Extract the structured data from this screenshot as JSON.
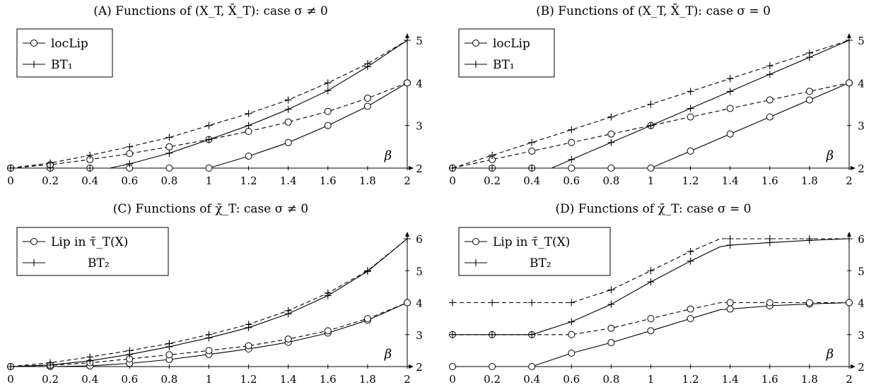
{
  "chart_data": [
    {
      "type": "line",
      "title": "(A) Functions of (X_T, X̄_T): case σ ≠ 0",
      "xlabel": "β",
      "xlim": [
        0,
        2
      ],
      "ylim": [
        2,
        5
      ],
      "x_ticks": [
        "0",
        "0.2",
        "0.4",
        "0.6",
        "0.8",
        "1",
        "1.2",
        "1.4",
        "1.6",
        "1.8",
        "2"
      ],
      "y_ticks": [
        "2",
        "3",
        "4",
        "5"
      ],
      "legend": {
        "position": "top-left",
        "entries": [
          {
            "label": "locLip",
            "marker": "circle"
          },
          {
            "label": "BT₁",
            "marker": "plus"
          }
        ]
      },
      "series": [
        {
          "name": "locLip",
          "style": "solid",
          "marker": "circle",
          "points": [
            [
              0,
              2
            ],
            [
              0.2,
              2
            ],
            [
              0.4,
              2
            ],
            [
              0.6,
              2
            ],
            [
              0.8,
              2
            ],
            [
              1,
              2
            ],
            [
              1.2,
              2.28
            ],
            [
              1.4,
              2.6
            ],
            [
              1.6,
              3.0
            ],
            [
              1.8,
              3.45
            ],
            [
              2,
              4
            ]
          ]
        },
        {
          "name": "locLip",
          "style": "dashed",
          "marker": "circle",
          "points": [
            [
              0,
              2
            ],
            [
              0.2,
              2.08
            ],
            [
              0.4,
              2.2
            ],
            [
              0.6,
              2.34
            ],
            [
              0.8,
              2.5
            ],
            [
              1,
              2.67
            ],
            [
              1.2,
              2.86
            ],
            [
              1.4,
              3.08
            ],
            [
              1.6,
              3.33
            ],
            [
              1.8,
              3.64
            ],
            [
              2,
              4
            ]
          ]
        },
        {
          "name": "BT₁",
          "style": "solid",
          "marker": "plus",
          "points": [
            [
              0,
              2
            ],
            [
              0.2,
              2
            ],
            [
              0.4,
              2
            ],
            [
              0.5,
              2
            ],
            [
              0.6,
              2.1
            ],
            [
              0.8,
              2.35
            ],
            [
              1,
              2.67
            ],
            [
              1.2,
              3.0
            ],
            [
              1.4,
              3.38
            ],
            [
              1.6,
              3.82
            ],
            [
              1.8,
              4.38
            ],
            [
              2,
              5
            ]
          ]
        },
        {
          "name": "BT₁",
          "style": "dashed",
          "marker": "plus",
          "points": [
            [
              0,
              2
            ],
            [
              0.2,
              2.12
            ],
            [
              0.4,
              2.3
            ],
            [
              0.6,
              2.5
            ],
            [
              0.8,
              2.72
            ],
            [
              1,
              3.0
            ],
            [
              1.2,
              3.28
            ],
            [
              1.4,
              3.6
            ],
            [
              1.6,
              4.0
            ],
            [
              1.8,
              4.45
            ],
            [
              2,
              5
            ]
          ]
        }
      ]
    },
    {
      "type": "line",
      "title": "(B) Functions of (X_T, X̄_T): case σ = 0",
      "xlabel": "β",
      "xlim": [
        0,
        2
      ],
      "ylim": [
        2,
        5
      ],
      "x_ticks": [
        "0",
        "0.2",
        "0.4",
        "0.6",
        "0.8",
        "1",
        "1.2",
        "1.4",
        "1.6",
        "1.8",
        "2"
      ],
      "y_ticks": [
        "2",
        "3",
        "4",
        "5"
      ],
      "legend": {
        "position": "top-left",
        "entries": [
          {
            "label": "locLip",
            "marker": "circle"
          },
          {
            "label": "BT₁",
            "marker": "plus"
          }
        ]
      },
      "series": [
        {
          "name": "locLip",
          "style": "solid",
          "marker": "circle",
          "points": [
            [
              0,
              2
            ],
            [
              0.2,
              2
            ],
            [
              0.4,
              2
            ],
            [
              0.6,
              2
            ],
            [
              0.8,
              2
            ],
            [
              1,
              2
            ],
            [
              1.2,
              2.4
            ],
            [
              1.4,
              2.8
            ],
            [
              1.6,
              3.2
            ],
            [
              1.8,
              3.6
            ],
            [
              2,
              4
            ]
          ]
        },
        {
          "name": "locLip",
          "style": "dashed",
          "marker": "circle",
          "points": [
            [
              0,
              2
            ],
            [
              0.2,
              2.2
            ],
            [
              0.4,
              2.4
            ],
            [
              0.6,
              2.6
            ],
            [
              0.8,
              2.8
            ],
            [
              1,
              3.0
            ],
            [
              1.2,
              3.2
            ],
            [
              1.4,
              3.4
            ],
            [
              1.6,
              3.6
            ],
            [
              1.8,
              3.8
            ],
            [
              2,
              4
            ]
          ]
        },
        {
          "name": "BT₁",
          "style": "solid",
          "marker": "plus",
          "points": [
            [
              0,
              2
            ],
            [
              0.2,
              2
            ],
            [
              0.4,
              2
            ],
            [
              0.5,
              2
            ],
            [
              0.6,
              2.2
            ],
            [
              0.8,
              2.6
            ],
            [
              1,
              3.0
            ],
            [
              1.2,
              3.4
            ],
            [
              1.4,
              3.8
            ],
            [
              1.6,
              4.2
            ],
            [
              1.8,
              4.6
            ],
            [
              2,
              5
            ]
          ]
        },
        {
          "name": "BT₁",
          "style": "dashed",
          "marker": "plus",
          "points": [
            [
              0,
              2
            ],
            [
              0.2,
              2.3
            ],
            [
              0.4,
              2.6
            ],
            [
              0.6,
              2.9
            ],
            [
              0.8,
              3.2
            ],
            [
              1,
              3.5
            ],
            [
              1.2,
              3.8
            ],
            [
              1.4,
              4.1
            ],
            [
              1.6,
              4.4
            ],
            [
              1.8,
              4.7
            ],
            [
              2,
              5
            ]
          ]
        }
      ]
    },
    {
      "type": "line",
      "title": "(C) Functions of χ̄_T: case σ ≠ 0",
      "xlabel": "β",
      "xlim": [
        0,
        2
      ],
      "ylim": [
        2,
        6
      ],
      "x_ticks": [
        "0",
        "0.2",
        "0.4",
        "0.6",
        "0.8",
        "1",
        "1.2",
        "1.4",
        "1.6",
        "1.8",
        "2"
      ],
      "y_ticks": [
        "2",
        "3",
        "4",
        "5",
        "6"
      ],
      "legend": {
        "position": "top-left",
        "entries": [
          {
            "label": "Lip in τ̄_T(X)",
            "marker": "circle"
          },
          {
            "label": "BT₂",
            "marker": "plus"
          }
        ]
      },
      "series": [
        {
          "name": "Lip in τ̄_T(X)",
          "style": "solid",
          "marker": "circle",
          "points": [
            [
              0,
              2
            ],
            [
              0.2,
              2
            ],
            [
              0.4,
              2.02
            ],
            [
              0.6,
              2.1
            ],
            [
              0.8,
              2.22
            ],
            [
              1,
              2.38
            ],
            [
              1.2,
              2.55
            ],
            [
              1.4,
              2.76
            ],
            [
              1.6,
              3.05
            ],
            [
              1.8,
              3.45
            ],
            [
              2,
              4
            ]
          ]
        },
        {
          "name": "Lip in τ̄_T(X)",
          "style": "dashed",
          "marker": "circle",
          "points": [
            [
              0,
              2
            ],
            [
              0.2,
              2.04
            ],
            [
              0.4,
              2.12
            ],
            [
              0.6,
              2.24
            ],
            [
              0.8,
              2.37
            ],
            [
              1,
              2.5
            ],
            [
              1.2,
              2.65
            ],
            [
              1.4,
              2.86
            ],
            [
              1.6,
              3.12
            ],
            [
              1.8,
              3.5
            ],
            [
              2,
              4
            ]
          ]
        },
        {
          "name": "BT₂",
          "style": "solid",
          "marker": "plus",
          "points": [
            [
              0,
              2
            ],
            [
              0.2,
              2.05
            ],
            [
              0.4,
              2.18
            ],
            [
              0.6,
              2.38
            ],
            [
              0.8,
              2.62
            ],
            [
              1,
              2.9
            ],
            [
              1.2,
              3.22
            ],
            [
              1.4,
              3.65
            ],
            [
              1.6,
              4.22
            ],
            [
              1.8,
              4.98
            ],
            [
              2,
              6
            ]
          ]
        },
        {
          "name": "BT₂",
          "style": "dashed",
          "marker": "plus",
          "points": [
            [
              0,
              2
            ],
            [
              0.2,
              2.12
            ],
            [
              0.4,
              2.3
            ],
            [
              0.6,
              2.5
            ],
            [
              0.8,
              2.72
            ],
            [
              1,
              3.0
            ],
            [
              1.2,
              3.32
            ],
            [
              1.4,
              3.75
            ],
            [
              1.6,
              4.3
            ],
            [
              1.8,
              5.0
            ],
            [
              2,
              6
            ]
          ]
        }
      ]
    },
    {
      "type": "line",
      "title": "(D) Functions of χ̄_T: case σ = 0",
      "xlabel": "β",
      "xlim": [
        0,
        2
      ],
      "ylim": [
        2,
        6
      ],
      "x_ticks": [
        "0",
        "0.2",
        "0.4",
        "0.6",
        "0.8",
        "1",
        "1.2",
        "1.4",
        "1.6",
        "1.8",
        "2"
      ],
      "y_ticks": [
        "2",
        "3",
        "4",
        "5",
        "6"
      ],
      "legend": {
        "position": "top-left",
        "entries": [
          {
            "label": "Lip in τ̄_T(X)",
            "marker": "circle"
          },
          {
            "label": "BT₂",
            "marker": "plus"
          }
        ]
      },
      "series": [
        {
          "name": "Lip in τ̄_T(X)",
          "style": "solid",
          "marker": "circle",
          "points": [
            [
              0,
              2
            ],
            [
              0.2,
              2
            ],
            [
              0.4,
              2
            ],
            [
              0.6,
              2.42
            ],
            [
              0.8,
              2.75
            ],
            [
              1,
              3.12
            ],
            [
              1.2,
              3.5
            ],
            [
              1.35,
              3.78
            ],
            [
              1.4,
              3.8
            ],
            [
              1.6,
              3.9
            ],
            [
              1.8,
              3.96
            ],
            [
              2,
              4
            ]
          ]
        },
        {
          "name": "Lip in τ̄_T(X)",
          "style": "dashed",
          "marker": "circle",
          "points": [
            [
              0,
              3
            ],
            [
              0.2,
              3
            ],
            [
              0.4,
              3
            ],
            [
              0.6,
              3
            ],
            [
              0.8,
              3.2
            ],
            [
              1,
              3.5
            ],
            [
              1.2,
              3.8
            ],
            [
              1.35,
              4.0
            ],
            [
              1.4,
              4.0
            ],
            [
              1.6,
              4.0
            ],
            [
              1.8,
              4.0
            ],
            [
              2,
              4
            ]
          ]
        },
        {
          "name": "BT₂",
          "style": "solid",
          "marker": "plus",
          "points": [
            [
              0,
              3
            ],
            [
              0.2,
              3
            ],
            [
              0.4,
              3
            ],
            [
              0.6,
              3.4
            ],
            [
              0.8,
              3.95
            ],
            [
              1,
              4.65
            ],
            [
              1.2,
              5.3
            ],
            [
              1.35,
              5.75
            ],
            [
              1.4,
              5.8
            ],
            [
              1.6,
              5.88
            ],
            [
              1.8,
              5.95
            ],
            [
              2,
              6
            ]
          ]
        },
        {
          "name": "BT₂",
          "style": "dashed",
          "marker": "plus",
          "points": [
            [
              0,
              4
            ],
            [
              0.2,
              4
            ],
            [
              0.4,
              4
            ],
            [
              0.6,
              4
            ],
            [
              0.8,
              4.4
            ],
            [
              1,
              5.0
            ],
            [
              1.2,
              5.6
            ],
            [
              1.35,
              6.0
            ],
            [
              1.4,
              6.0
            ],
            [
              1.6,
              6.0
            ],
            [
              1.8,
              6.0
            ],
            [
              2,
              6
            ]
          ]
        }
      ]
    }
  ]
}
